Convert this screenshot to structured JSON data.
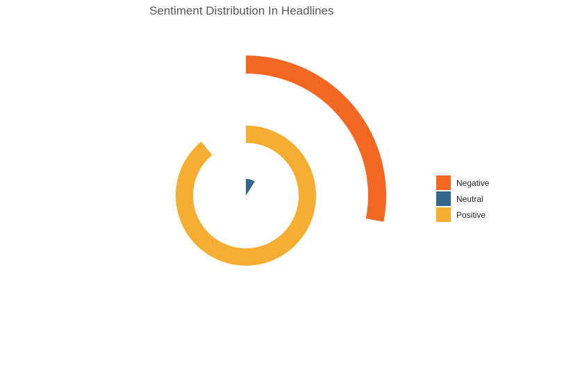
{
  "chart_data": {
    "type": "radial-bar",
    "title": "Sentiment Distribution In Headlines",
    "categories": [
      "Negative",
      "Neutral",
      "Positive"
    ],
    "values": [
      0.28,
      0.09,
      0.89
    ],
    "value_scale": "fraction of full circle",
    "colors": {
      "Negative": "#f26722",
      "Neutral": "#35668b",
      "Positive": "#f5ae31"
    },
    "legend": {
      "position": "right",
      "entries": [
        {
          "label": "Negative",
          "color": "#f26722"
        },
        {
          "label": "Neutral",
          "color": "#35668b"
        },
        {
          "label": "Positive",
          "color": "#f5ae31"
        }
      ]
    },
    "grid": false
  }
}
